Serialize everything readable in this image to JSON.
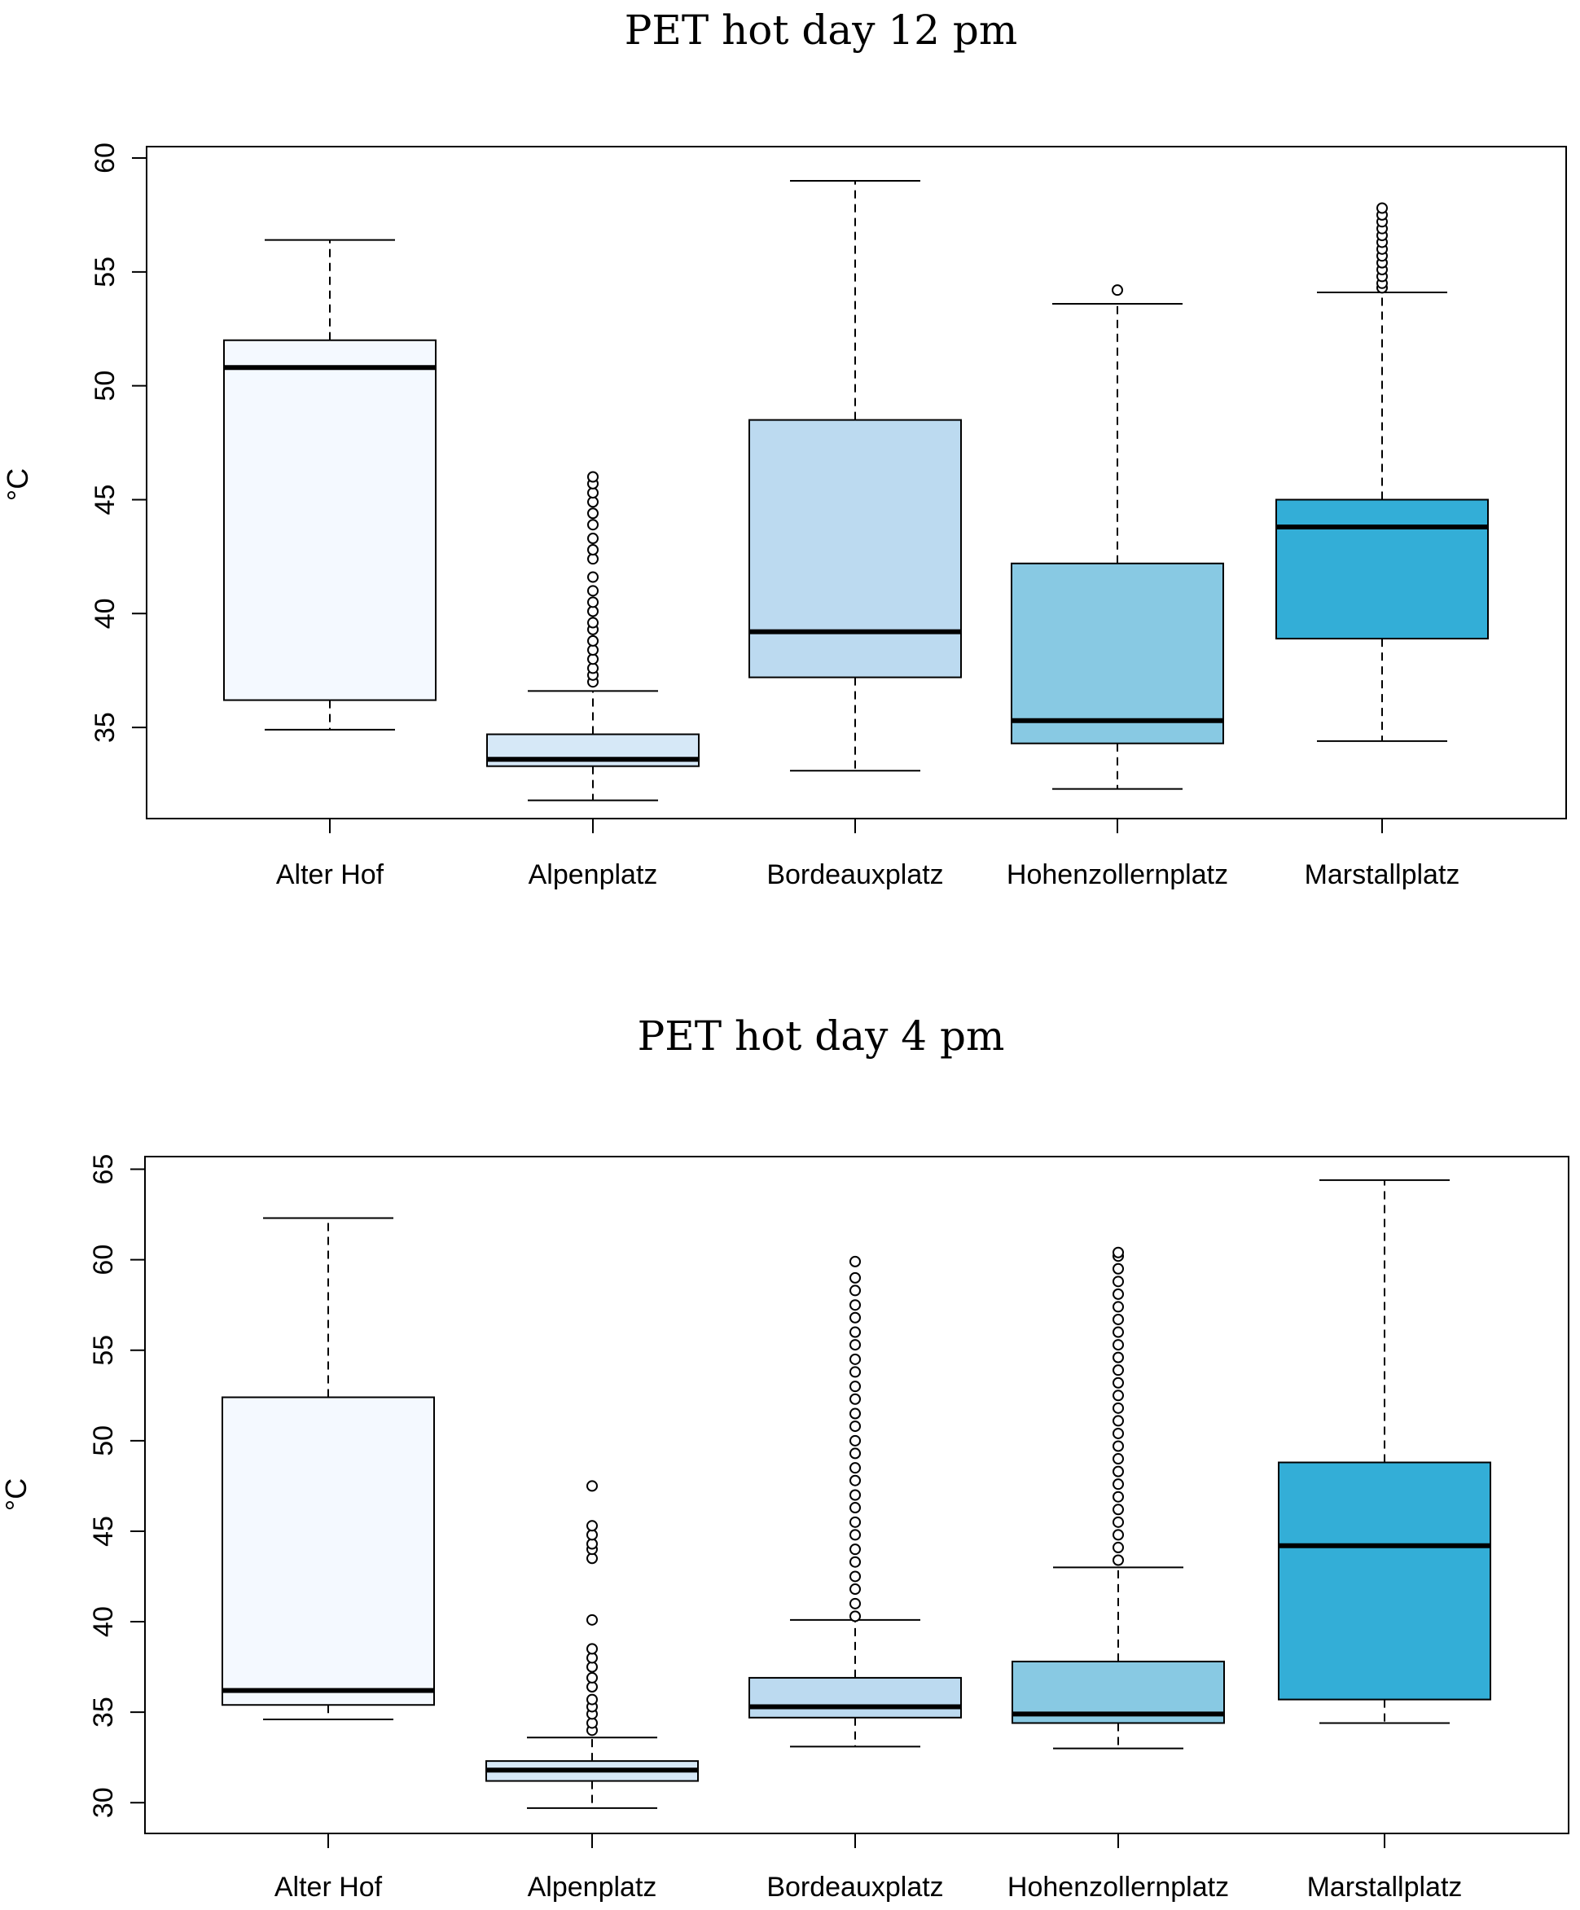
{
  "chart_data": [
    {
      "type": "boxplot",
      "title": "PET hot day 12 pm",
      "ylabel": "°C",
      "xlabel": "",
      "ylim": [
        31,
        60.5
      ],
      "yticks": [
        35,
        40,
        45,
        50,
        55,
        60
      ],
      "categories": [
        "Alter Hof",
        "Alpenplatz",
        "Bordeauxplatz",
        "Hohenzollernplatz",
        "Marstallplatz"
      ],
      "colors": [
        "#f4f9ff",
        "#d6e8f7",
        "#bcdaf0",
        "#88c9e3",
        "#33aed7"
      ],
      "boxes": [
        {
          "name": "Alter Hof",
          "whisker_low": 34.9,
          "q1": 36.2,
          "median": 50.8,
          "q3": 52.0,
          "whisker_high": 56.4,
          "outliers": []
        },
        {
          "name": "Alpenplatz",
          "whisker_low": 31.8,
          "q1": 33.3,
          "median": 33.6,
          "q3": 34.7,
          "whisker_high": 36.6,
          "outliers": [
            37.0,
            37.3,
            37.6,
            38.0,
            38.4,
            38.8,
            39.3,
            39.6,
            40.1,
            40.5,
            41.0,
            41.6,
            42.4,
            42.8,
            43.3,
            43.9,
            44.4,
            44.9,
            45.3,
            45.7,
            46.0
          ]
        },
        {
          "name": "Bordeauxplatz",
          "whisker_low": 33.1,
          "q1": 37.2,
          "median": 39.2,
          "q3": 48.5,
          "whisker_high": 59.0,
          "outliers": []
        },
        {
          "name": "Hohenzollernplatz",
          "whisker_low": 32.3,
          "q1": 34.3,
          "median": 35.3,
          "q3": 42.2,
          "whisker_high": 53.6,
          "outliers": [
            54.2
          ]
        },
        {
          "name": "Marstallplatz",
          "whisker_low": 34.4,
          "q1": 38.9,
          "median": 43.8,
          "q3": 45.0,
          "whisker_high": 54.1,
          "outliers": [
            54.3,
            54.5,
            54.8,
            55.1,
            55.4,
            55.7,
            56.0,
            56.3,
            56.6,
            56.9,
            57.2,
            57.5,
            57.8
          ]
        }
      ]
    },
    {
      "type": "boxplot",
      "title": "PET hot day 4 pm",
      "ylabel": "°C",
      "xlabel": "",
      "ylim": [
        28.3,
        65.7
      ],
      "yticks": [
        30,
        35,
        40,
        45,
        50,
        55,
        60,
        65
      ],
      "categories": [
        "Alter Hof",
        "Alpenplatz",
        "Bordeauxplatz",
        "Hohenzollernplatz",
        "Marstallplatz"
      ],
      "colors": [
        "#f4f9ff",
        "#d6e8f7",
        "#bcdaf0",
        "#88c9e3",
        "#33aed7"
      ],
      "boxes": [
        {
          "name": "Alter Hof",
          "whisker_low": 34.6,
          "q1": 35.4,
          "median": 36.2,
          "q3": 52.4,
          "whisker_high": 62.3,
          "outliers": []
        },
        {
          "name": "Alpenplatz",
          "whisker_low": 29.7,
          "q1": 31.2,
          "median": 31.8,
          "q3": 32.3,
          "whisker_high": 33.6,
          "outliers": [
            34.0,
            34.4,
            34.9,
            35.3,
            35.7,
            36.4,
            36.9,
            37.5,
            38.0,
            38.5,
            40.1,
            43.5,
            44.0,
            44.3,
            44.8,
            45.3,
            47.5
          ]
        },
        {
          "name": "Bordeauxplatz",
          "whisker_low": 33.1,
          "q1": 34.7,
          "median": 35.3,
          "q3": 36.9,
          "whisker_high": 40.1,
          "outliers": [
            40.3,
            41.0,
            41.8,
            42.5,
            43.3,
            44.0,
            44.8,
            45.5,
            46.3,
            47.0,
            47.8,
            48.5,
            49.3,
            50.0,
            50.8,
            51.5,
            52.3,
            53.0,
            53.8,
            54.5,
            55.3,
            56.0,
            56.8,
            57.5,
            58.3,
            59.0,
            59.9
          ]
        },
        {
          "name": "Hohenzollernplatz",
          "whisker_low": 33.0,
          "q1": 34.4,
          "median": 34.9,
          "q3": 37.8,
          "whisker_high": 43.0,
          "outliers": [
            43.4,
            44.1,
            44.8,
            45.5,
            46.2,
            46.9,
            47.6,
            48.3,
            49.0,
            49.7,
            50.4,
            51.1,
            51.8,
            52.5,
            53.2,
            53.9,
            54.6,
            55.3,
            56.0,
            56.7,
            57.4,
            58.1,
            58.8,
            59.5,
            60.2,
            60.4
          ]
        },
        {
          "name": "Marstallplatz",
          "whisker_low": 34.4,
          "q1": 35.7,
          "median": 44.2,
          "q3": 48.8,
          "whisker_high": 64.4,
          "outliers": []
        }
      ]
    }
  ]
}
